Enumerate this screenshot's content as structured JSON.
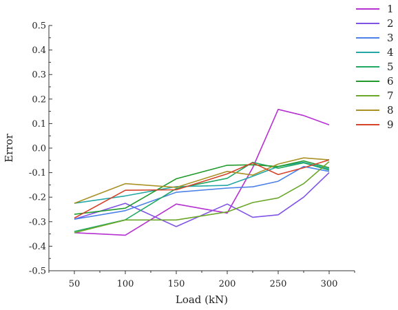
{
  "chart_data": {
    "type": "line",
    "title": "",
    "xlabel": "Load (kN)",
    "ylabel": "Error",
    "xlim": [
      25,
      325
    ],
    "ylim": [
      -0.5,
      0.5
    ],
    "xticks": [
      50,
      100,
      150,
      200,
      250,
      300
    ],
    "xtick_labels": [
      "50",
      "100",
      "150",
      "200",
      "250",
      "300"
    ],
    "yticks": [
      -0.5,
      -0.4,
      -0.3,
      -0.2,
      -0.1,
      0.0,
      0.1,
      0.2,
      0.3,
      0.4,
      0.5
    ],
    "ytick_labels": [
      "-0.5",
      "-0.4",
      "-0.3",
      "-0.2",
      "-0.1",
      "0.0",
      "0.1",
      "0.2",
      "0.3",
      "0.4",
      "0.5"
    ],
    "grid": false,
    "legend_position": "top-right outside",
    "series": [
      {
        "name": "1",
        "color": "#b62fd0",
        "x": [
          50,
          100,
          150,
          200,
          225,
          250,
          275,
          300
        ],
        "y": [
          -0.345,
          -0.355,
          -0.228,
          -0.265,
          -0.08,
          0.158,
          0.133,
          0.095
        ]
      },
      {
        "name": "2",
        "color": "#8052e6",
        "x": [
          50,
          100,
          150,
          200,
          225,
          250,
          275,
          300
        ],
        "y": [
          -0.29,
          -0.225,
          -0.32,
          -0.228,
          -0.282,
          -0.272,
          -0.2,
          -0.1
        ]
      },
      {
        "name": "3",
        "color": "#4a80e8",
        "x": [
          50,
          100,
          150,
          200,
          225,
          250,
          275,
          300
        ],
        "y": [
          -0.29,
          -0.255,
          -0.18,
          -0.163,
          -0.158,
          -0.135,
          -0.075,
          -0.095
        ]
      },
      {
        "name": "4",
        "color": "#23a6a6",
        "x": [
          50,
          100,
          150,
          200,
          225,
          250,
          275,
          300
        ],
        "y": [
          -0.225,
          -0.195,
          -0.157,
          -0.152,
          -0.115,
          -0.075,
          -0.058,
          -0.085
        ]
      },
      {
        "name": "5",
        "color": "#1ea862",
        "x": [
          50,
          100,
          150,
          200,
          225,
          250,
          275,
          300
        ],
        "y": [
          -0.34,
          -0.292,
          -0.165,
          -0.123,
          -0.058,
          -0.082,
          -0.06,
          -0.09
        ]
      },
      {
        "name": "6",
        "color": "#1f9a2b",
        "x": [
          50,
          100,
          150,
          200,
          225,
          250,
          275,
          300
        ],
        "y": [
          -0.27,
          -0.245,
          -0.125,
          -0.07,
          -0.068,
          -0.075,
          -0.052,
          -0.08
        ]
      },
      {
        "name": "7",
        "color": "#6aa628",
        "x": [
          50,
          100,
          150,
          200,
          225,
          250,
          275,
          300
        ],
        "y": [
          -0.345,
          -0.293,
          -0.293,
          -0.26,
          -0.222,
          -0.203,
          -0.145,
          -0.055
        ]
      },
      {
        "name": "8",
        "color": "#a99125",
        "x": [
          50,
          100,
          150,
          200,
          225,
          250,
          275,
          300
        ],
        "y": [
          -0.225,
          -0.145,
          -0.16,
          -0.095,
          -0.11,
          -0.065,
          -0.04,
          -0.048
        ]
      },
      {
        "name": "9",
        "color": "#d4432a",
        "x": [
          50,
          100,
          150,
          200,
          225,
          250,
          275,
          300
        ],
        "y": [
          -0.285,
          -0.172,
          -0.17,
          -0.105,
          -0.06,
          -0.108,
          -0.08,
          -0.048
        ]
      }
    ]
  }
}
